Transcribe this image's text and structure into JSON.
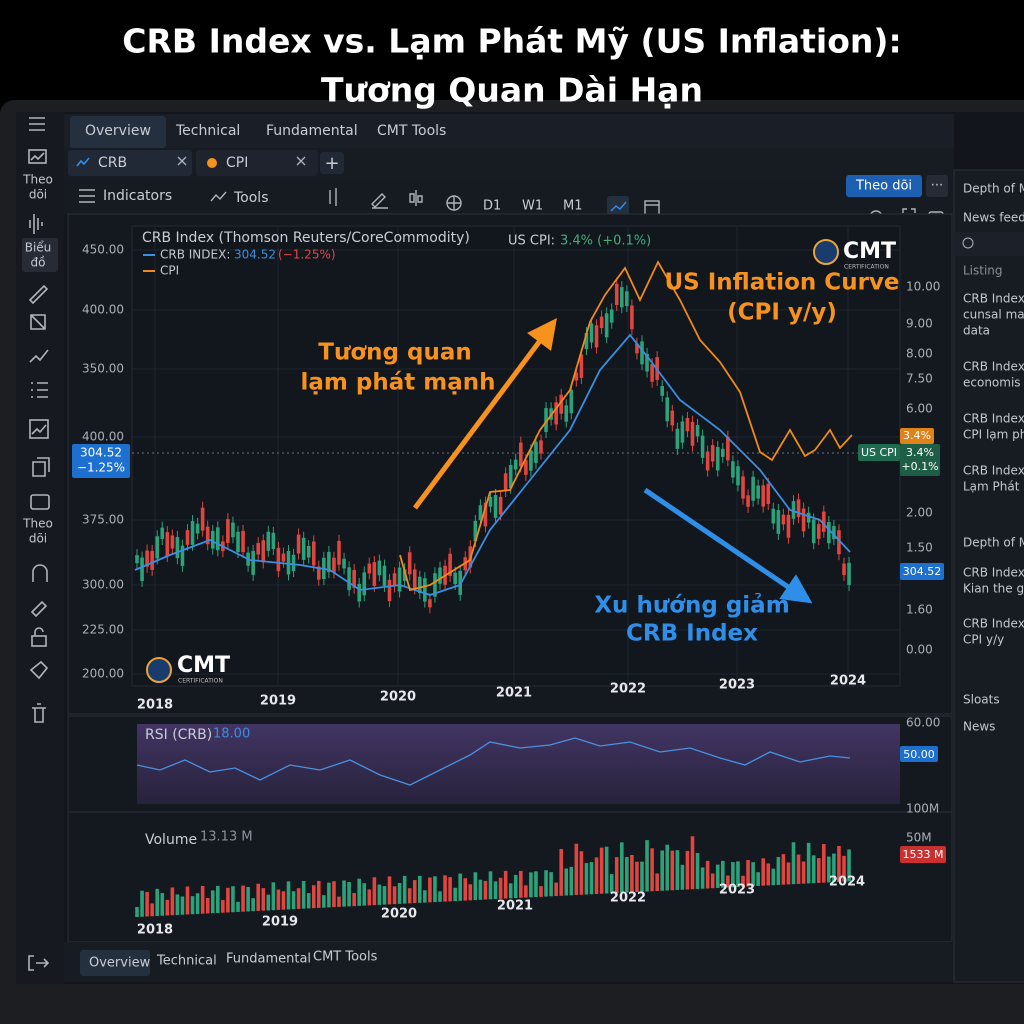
{
  "title_lines": [
    "CRB Index vs. Lạm Phát Mỹ (US Inflation):",
    "Tương Quan Dài Hạn"
  ],
  "nav_tabs": [
    "Overview",
    "Technical",
    "Fundamental",
    "CMT Tools"
  ],
  "symbol_tabs": [
    "CRB",
    "CPI"
  ],
  "toolbar": {
    "indicators": "Indicators",
    "tools": "Tools",
    "timeframes": [
      "D1",
      "W1",
      "M1"
    ],
    "follow_button": "Theo dõi"
  },
  "sidebar_labels": [
    [
      "Theo",
      "dõi"
    ],
    [
      "Biểu",
      "đồ"
    ],
    [
      "Theo",
      "dõi"
    ]
  ],
  "chart": {
    "title": "CRB Index (Thomson Reuters/CoreCommodity)",
    "legend": {
      "crb_label": "CRB INDEX:",
      "crb_value": "304.52",
      "crb_change": "(−1.25%)",
      "cpi_label": "CPI",
      "us_cpi_label": "US CPI:",
      "us_cpi_value": "3.4% (+0.1%)"
    },
    "left_axis_labels": [
      "450.00",
      "400.00",
      "350.00",
      "400.00",
      "375.00",
      "300.00",
      "225.00",
      "200.00"
    ],
    "right_axis_labels": [
      "10.00",
      "9.00",
      "8.00",
      "7.50",
      "6.00",
      "2.00",
      "1.50",
      "1.60",
      "0.00"
    ],
    "price_tag": [
      "304.52",
      "−1.25%"
    ],
    "cpi_tag": "3.4%",
    "us_cpi_tag": "US CPI",
    "us_cpi_tag_values": [
      "3.4%",
      "+0.1%"
    ],
    "last_price_tag": "304.52",
    "x_labels": [
      "2018",
      "2019",
      "2020",
      "2021",
      "2022",
      "2023",
      "2024"
    ],
    "annotations": {
      "correlation": [
        "Tương quan",
        "lạm phát mạnh"
      ],
      "inflation_curve": [
        "US Inflation Curve",
        "(CPI y/y)"
      ],
      "downtrend": [
        "Xu hướng giảm",
        "CRB Index"
      ]
    },
    "logo": "CMT",
    "logo_sub": "CERTIFICATION"
  },
  "rsi": {
    "label": "RSI (CRB)",
    "value": "18.00",
    "axis_label": "60.00",
    "tag": "50.00"
  },
  "volume": {
    "label": "Volume",
    "value": "13.13 M",
    "axis_labels": [
      "100M",
      "50M"
    ],
    "tag": "1533 M",
    "x_labels": [
      "2018",
      "2019",
      "2020",
      "2021",
      "2022",
      "2023",
      "2024"
    ]
  },
  "bottom_tabs": [
    "Overview",
    "Technical",
    "Fundamental",
    "CMT Tools"
  ],
  "side_panel": {
    "depth": "Depth of Ma",
    "news_feed": "News feed",
    "listing": "Listing",
    "items": [
      [
        "CRB Index a",
        "cunsal mar",
        "data"
      ],
      [
        "CRB Index",
        "economis o"
      ],
      [
        "CRB Index",
        "CPI lạm pha"
      ],
      [
        "CRB Index I",
        "Lạm Phát M"
      ]
    ],
    "depth2": "Depth of Ma",
    "items2": [
      [
        "CRB Index",
        "Kian the gid"
      ],
      [
        "CRB Index U",
        "CPI y/y"
      ]
    ],
    "sloats": "Sloats",
    "news": "News"
  }
}
